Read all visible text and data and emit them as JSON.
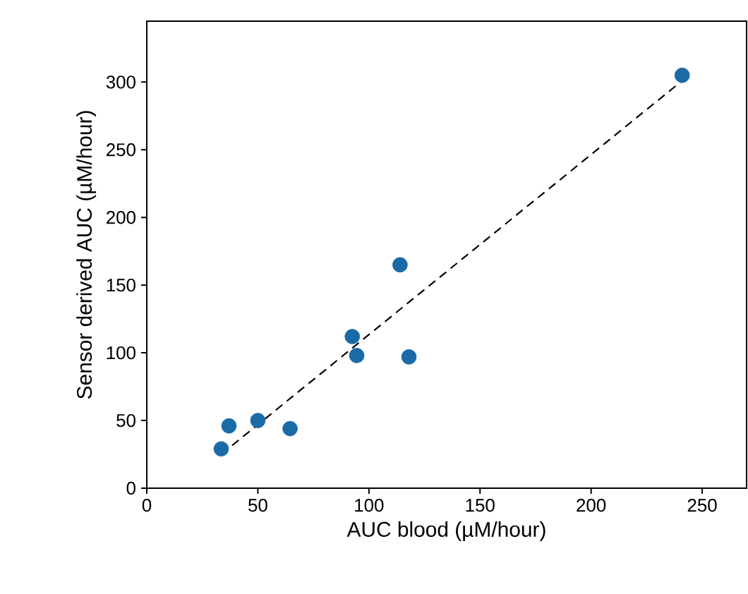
{
  "chart_data": {
    "type": "scatter",
    "xlabel": "AUC blood (µM/hour)",
    "ylabel": "Sensor derived AUC (µM/hour)",
    "xlim": [
      0,
      270
    ],
    "ylim": [
      0,
      345
    ],
    "xticks": [
      0,
      50,
      100,
      150,
      200,
      250
    ],
    "yticks": [
      0,
      50,
      100,
      150,
      200,
      250,
      300
    ],
    "grid": false,
    "series": [
      {
        "marker": "circle",
        "color": "#1b6aa8",
        "x": [
          33.5,
          37,
          50,
          64.5,
          92.5,
          94.5,
          114,
          118,
          241
        ],
        "values": [
          29,
          46,
          50,
          44,
          112,
          98,
          165,
          97,
          305
        ]
      },
      {
        "type": "line",
        "color": "#000000",
        "line_style": "dashed",
        "marker": "none",
        "x": [
          33.5,
          241
        ],
        "values": [
          25,
          301
        ]
      }
    ]
  }
}
